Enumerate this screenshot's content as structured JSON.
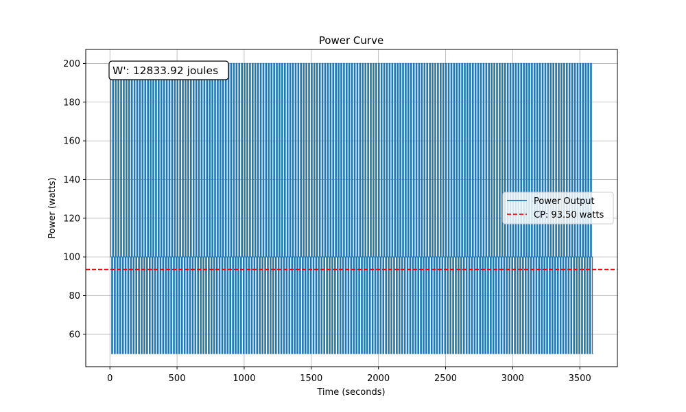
{
  "chart_data": {
    "type": "line",
    "title": "Power Curve",
    "xlabel": "Time (seconds)",
    "ylabel": "Power (watts)",
    "xlim": [
      -180,
      3780
    ],
    "ylim": [
      43.25,
      207.25
    ],
    "x_ticks": [
      0,
      500,
      1000,
      1500,
      2000,
      2500,
      3000,
      3500
    ],
    "y_ticks": [
      60,
      80,
      100,
      120,
      140,
      160,
      180,
      200
    ],
    "x_tick_labels": [
      "0",
      "500",
      "1000",
      "1500",
      "2000",
      "2500",
      "3000",
      "3500"
    ],
    "y_tick_labels": [
      "60",
      "80",
      "100",
      "120",
      "140",
      "160",
      "180",
      "200"
    ],
    "grid": true,
    "legend_position": "center-right",
    "series": [
      {
        "name": "Power Output",
        "color": "#1f77b4",
        "style": "solid",
        "pattern": {
          "description": "Repeating interval: 200 W segment, then 100 W, then 50 W",
          "x_start": 0,
          "x_end": 3599,
          "interval_period_seconds": 20,
          "levels_watts": [
            200,
            100,
            50
          ]
        }
      },
      {
        "name": "CP: 93.50 watts",
        "color": "#ff0000",
        "style": "dashed",
        "type": "hline",
        "y": 93.5
      }
    ],
    "annotation": {
      "text": "W': 12833.92 joules",
      "position": "top-left"
    }
  }
}
